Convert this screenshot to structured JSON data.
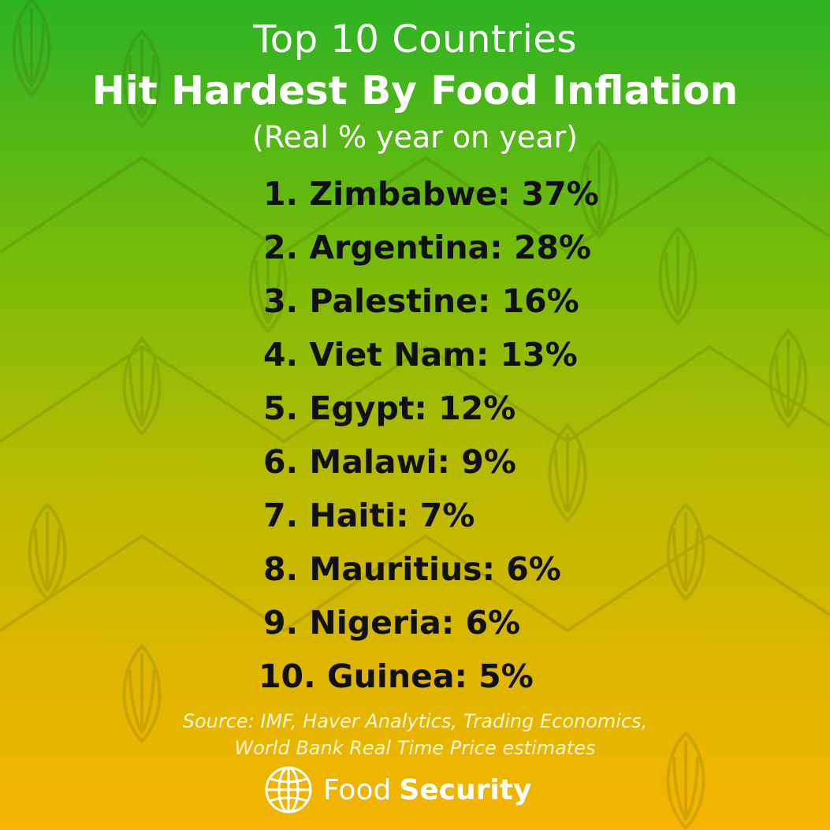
{
  "title": {
    "line1": "Top 10 Countries",
    "line2": "Hit Hardest By Food Inflation",
    "subtitle": "(Real % year on year)"
  },
  "ranking": [
    {
      "rank": "1.",
      "country": "Zimbabwe",
      "value": "37%"
    },
    {
      "rank": "2.",
      "country": "Argentina",
      "value": "28%"
    },
    {
      "rank": "3.",
      "country": "Palestine",
      "value": "16%"
    },
    {
      "rank": "4.",
      "country": "Viet Nam",
      "value": "13%"
    },
    {
      "rank": "5.",
      "country": "Egypt",
      "value": "12%"
    },
    {
      "rank": "6.",
      "country": "Malawi",
      "value": "9%"
    },
    {
      "rank": "7.",
      "country": "Haiti",
      "value": "7%"
    },
    {
      "rank": "8.",
      "country": "Mauritius",
      "value": "6%"
    },
    {
      "rank": "9.",
      "country": "Nigeria",
      "value": "6%"
    },
    {
      "rank": "10.",
      "country": "Guinea",
      "value": "5%"
    }
  ],
  "source": {
    "line1": "Source: IMF, Haver Analytics, Trading Economics,",
    "line2": "World Bank Real Time Price estimates"
  },
  "brand": {
    "icon": "globe-icon",
    "word1": "Food",
    "word2": "Security"
  },
  "colors": {
    "gradient_top": "#2cb324",
    "gradient_bottom": "#f5b400",
    "title_text": "#ffffff",
    "ranking_text": "#111111"
  }
}
